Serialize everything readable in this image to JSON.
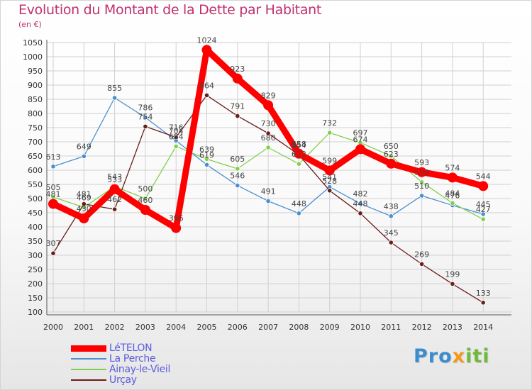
{
  "title": "Evolution du Montant de la Dette par Habitant",
  "subtitle": "(en €)",
  "logo": {
    "pre": "Pro",
    "x": "x",
    "post": "iti"
  },
  "colors": {
    "title": "#c0306e",
    "legend_text": "#5a5adc",
    "grid": "#d0d0d0"
  },
  "chart_data": {
    "type": "line",
    "title": "Evolution du Montant de la Dette par Habitant",
    "subtitle": "(en €)",
    "xlabel": "",
    "ylabel": "",
    "x": [
      "2000",
      "2001",
      "2002",
      "2003",
      "2004",
      "2005",
      "2006",
      "2007",
      "2008",
      "2009",
      "2010",
      "2011",
      "2012",
      "2013",
      "2014"
    ],
    "ylim": [
      100,
      1050
    ],
    "yticks": [
      100,
      150,
      200,
      250,
      300,
      350,
      400,
      450,
      500,
      550,
      600,
      650,
      700,
      750,
      800,
      850,
      900,
      950,
      1000,
      1050
    ],
    "grid": true,
    "legend_position": "bottom-left",
    "series": [
      {
        "name": "LéTELON",
        "color": "#ff0000",
        "values": [
          481,
          430,
          533,
          460,
          396,
          1024,
          923,
          829,
          658,
          599,
          674,
          623,
          593,
          574,
          544
        ]
      },
      {
        "name": "La Perche",
        "color": "#4a8fcf",
        "values": [
          613,
          649,
          855,
          786,
          704,
          619,
          546,
          491,
          448,
          541,
          482,
          438,
          510,
          476,
          445
        ]
      },
      {
        "name": "Ainay-le-Vieil",
        "color": "#7fd04a",
        "values": [
          505,
          469,
          543,
          500,
          684,
          639,
          605,
          680,
          622,
          732,
          697,
          650,
          558,
          484,
          427
        ]
      },
      {
        "name": "Urçay",
        "color": "#6b1d1d",
        "values": [
          307,
          481,
          462,
          754,
          716,
          864,
          791,
          730,
          654,
          528,
          448,
          345,
          269,
          199,
          133
        ]
      }
    ]
  }
}
